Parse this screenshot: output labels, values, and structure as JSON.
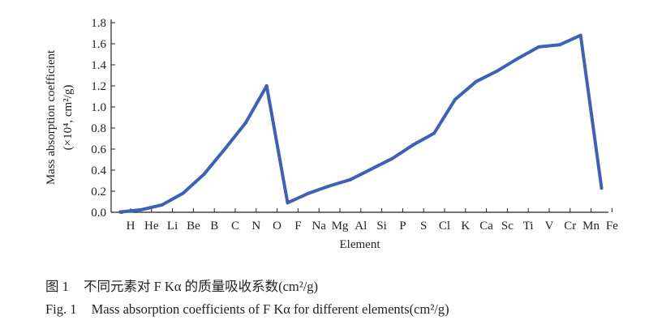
{
  "chart_data": {
    "type": "line",
    "xlabel": "Element",
    "ylabel_line1": "Mass  absorption  coefficient",
    "ylabel_line2": "(×10⁴, cm²/g)",
    "ylim": [
      0,
      1.8
    ],
    "yticks": [
      "0.0",
      "0.2",
      "0.4",
      "0.6",
      "0.8",
      "1.0",
      "1.2",
      "1.4",
      "1.6",
      "1.8"
    ],
    "grid": false,
    "line_color": "#3d60b8",
    "categories": [
      "H",
      "He",
      "Li",
      "Be",
      "B",
      "C",
      "N",
      "O",
      "F",
      "Na",
      "Mg",
      "Al",
      "Si",
      "P",
      "S",
      "Cl",
      "K",
      "Ca",
      "Sc",
      "Ti",
      "V",
      "Cr",
      "Mn",
      "Fe"
    ],
    "points": [
      {
        "x": "",
        "y": 0.0
      },
      {
        "x": "H",
        "y": 0.003
      },
      {
        "x": "He",
        "y": 0.024
      },
      {
        "x": "Li",
        "y": 0.07
      },
      {
        "x": "Be",
        "y": 0.18
      },
      {
        "x": "B",
        "y": 0.36
      },
      {
        "x": "C",
        "y": 0.6
      },
      {
        "x": "N",
        "y": 0.85
      },
      {
        "x": "O",
        "y": 1.2
      },
      {
        "x": "F",
        "y": 0.09
      },
      {
        "x": "Na",
        "y": 0.18
      },
      {
        "x": "Mg",
        "y": 0.25
      },
      {
        "x": "Al",
        "y": 0.31
      },
      {
        "x": "Si",
        "y": 0.41
      },
      {
        "x": "P",
        "y": 0.51
      },
      {
        "x": "S",
        "y": 0.64
      },
      {
        "x": "Cl",
        "y": 0.75
      },
      {
        "x": "K",
        "y": 1.07
      },
      {
        "x": "Ca",
        "y": 1.24
      },
      {
        "x": "Sc",
        "y": 1.34
      },
      {
        "x": "Ti",
        "y": 1.46
      },
      {
        "x": "V",
        "y": 1.57
      },
      {
        "x": "Cr",
        "y": 1.59
      },
      {
        "x": "Mn",
        "y": 1.68
      },
      {
        "x": "Fe",
        "y": 0.23
      }
    ]
  },
  "caption": {
    "cn_fig": "图 1",
    "cn_text": "不同元素对 F Kα 的质量吸收系数(cm²/g)",
    "en_fig": "Fig. 1",
    "en_text": "Mass absorption coefficients of F Kα for different elements(cm²/g)"
  }
}
